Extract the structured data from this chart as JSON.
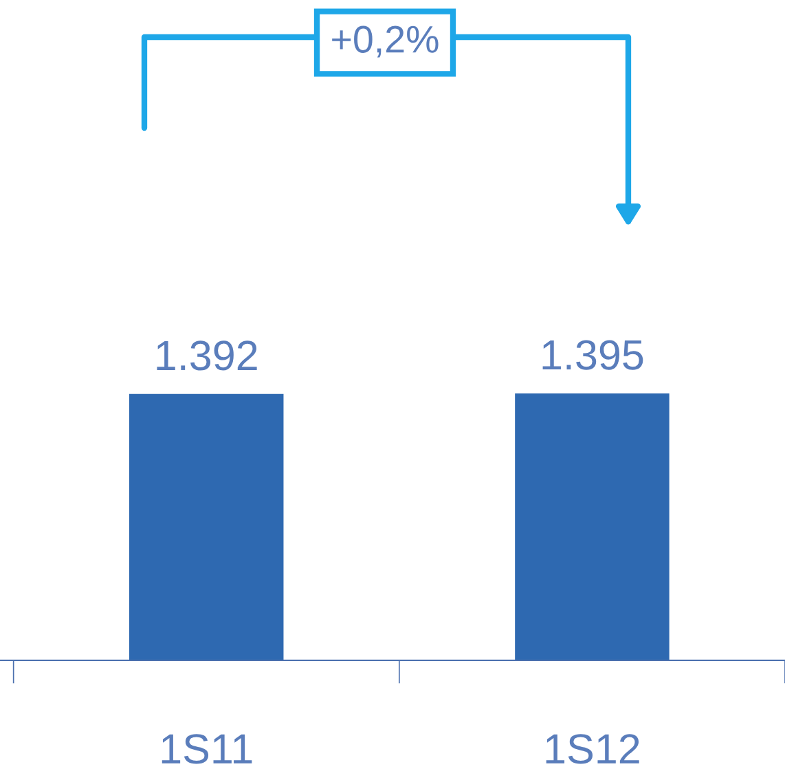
{
  "chart_data": {
    "type": "bar",
    "categories": [
      "1S11",
      "1S12"
    ],
    "values": [
      1392,
      1395
    ],
    "value_labels": [
      "1.392",
      "1.395"
    ],
    "color": "#2e69b1",
    "annotations": [
      "+0,2%"
    ],
    "grid": false,
    "legend": false
  }
}
